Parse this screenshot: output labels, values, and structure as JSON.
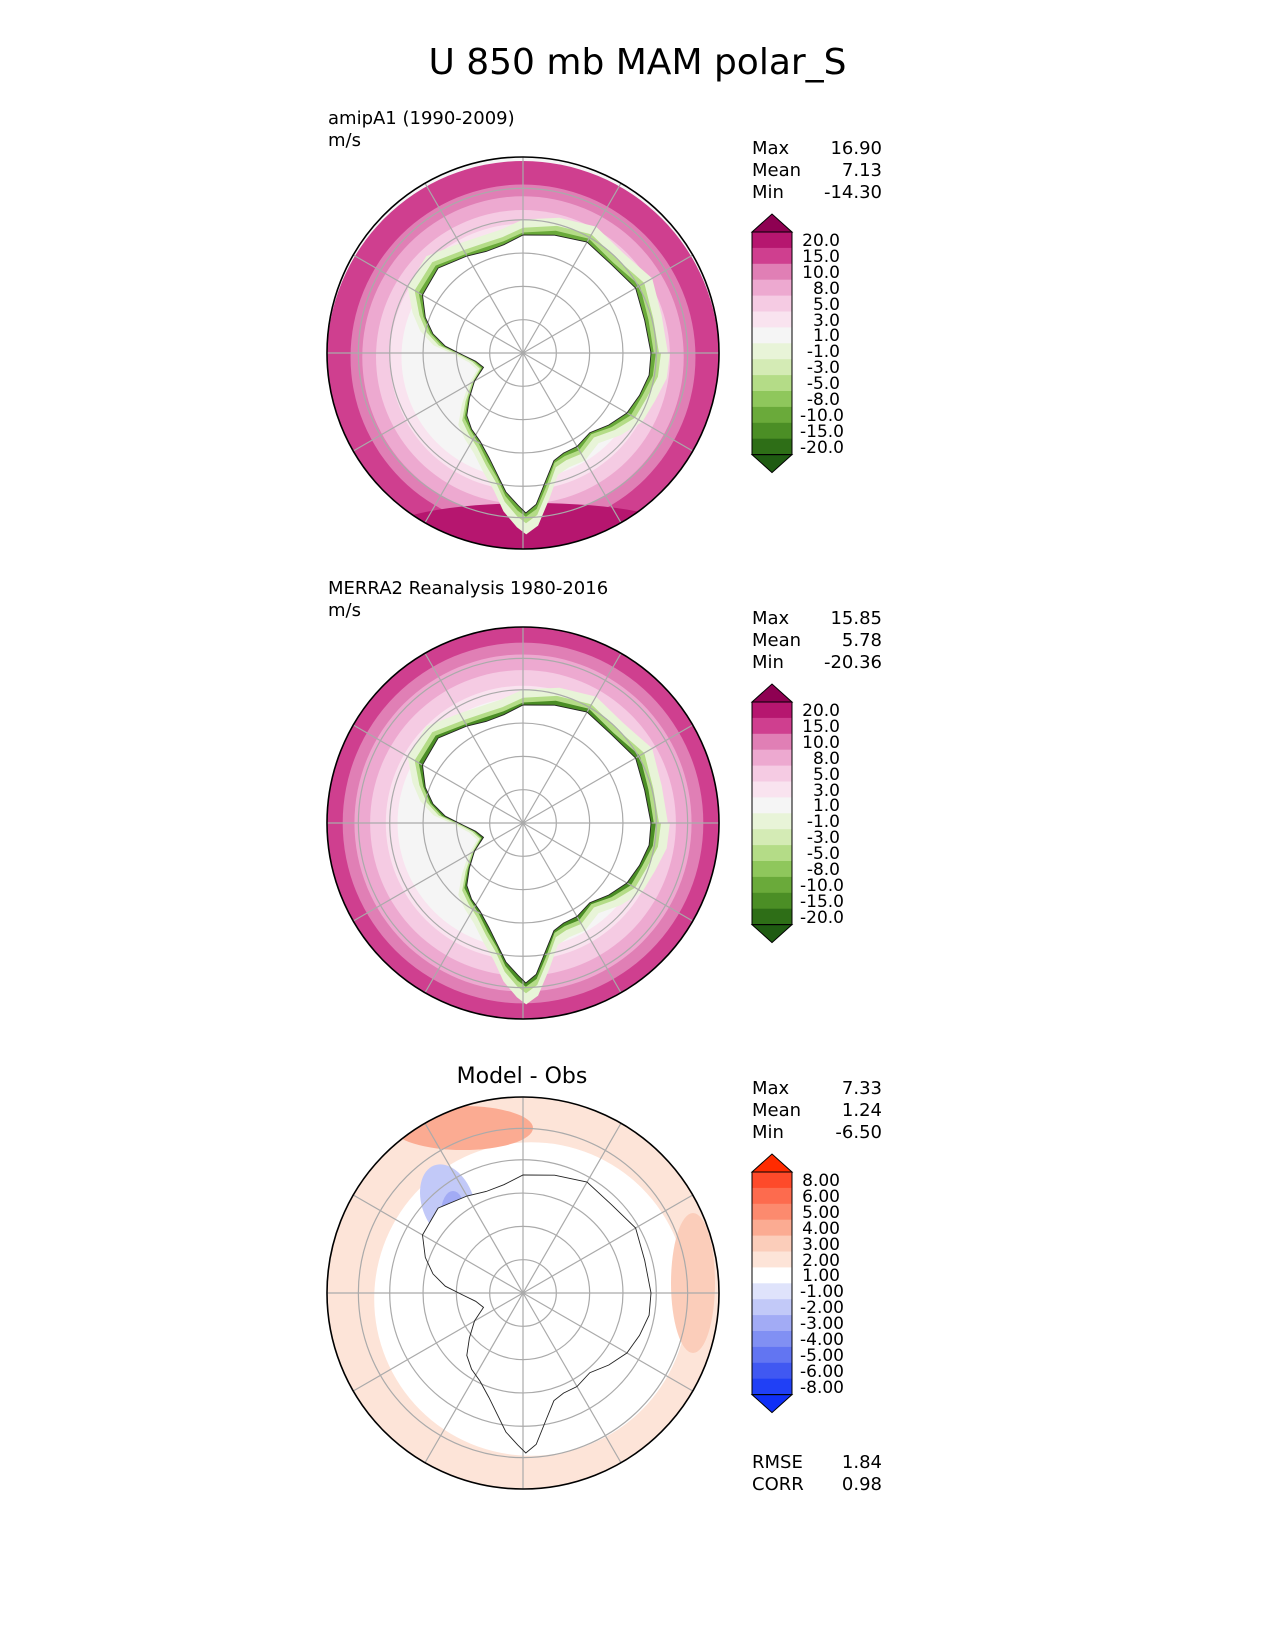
{
  "title": "U 850 mb MAM polar_S",
  "panels": [
    {
      "id": "test",
      "name": "amipA1 (1990-2009)",
      "units": "m/s",
      "stats": {
        "max_label": "Max",
        "max": "16.90",
        "mean_label": "Mean",
        "mean": "7.13",
        "min_label": "Min",
        "min": "-14.30"
      },
      "colorbar": {
        "labels": [
          "20.0",
          "15.0",
          "10.0",
          "8.0",
          "5.0",
          "3.0",
          "1.0",
          "-1.0",
          "-3.0",
          "-5.0",
          "-8.0",
          "-10.0",
          "-15.0",
          "-20.0"
        ],
        "colors": [
          "#8e0152",
          "#b6166f",
          "#cf3f8f",
          "#e07fb5",
          "#eda9d0",
          "#f5cbe3",
          "#f9e3ef",
          "#f5f5f5",
          "#e8f4d8",
          "#d4ebb5",
          "#b4dc87",
          "#8fc75c",
          "#6aaa3a",
          "#4b8e25",
          "#2e6e17",
          "#1f5b12"
        ]
      }
    },
    {
      "id": "ref",
      "name": "MERRA2 Reanalysis 1980-2016",
      "units": "m/s",
      "stats": {
        "max_label": "Max",
        "max": "15.85",
        "mean_label": "Mean",
        "mean": "5.78",
        "min_label": "Min",
        "min": "-20.36"
      },
      "colorbar": {
        "labels": [
          "20.0",
          "15.0",
          "10.0",
          "8.0",
          "5.0",
          "3.0",
          "1.0",
          "-1.0",
          "-3.0",
          "-5.0",
          "-8.0",
          "-10.0",
          "-15.0",
          "-20.0"
        ],
        "colors": [
          "#8e0152",
          "#b6166f",
          "#cf3f8f",
          "#e07fb5",
          "#eda9d0",
          "#f5cbe3",
          "#f9e3ef",
          "#f5f5f5",
          "#e8f4d8",
          "#d4ebb5",
          "#b4dc87",
          "#8fc75c",
          "#6aaa3a",
          "#4b8e25",
          "#2e6e17",
          "#1f5b12"
        ]
      }
    },
    {
      "id": "diff",
      "name": "Model - Obs",
      "stats": {
        "max_label": "Max",
        "max": "7.33",
        "mean_label": "Mean",
        "mean": "1.24",
        "min_label": "Min",
        "min": "-6.50"
      },
      "metrics": {
        "rmse_label": "RMSE",
        "rmse": "1.84",
        "corr_label": "CORR",
        "corr": "0.98"
      },
      "colorbar": {
        "labels": [
          "8.00",
          "6.00",
          "5.00",
          "4.00",
          "3.00",
          "2.00",
          "1.00",
          "-1.00",
          "-2.00",
          "-3.00",
          "-4.00",
          "-5.00",
          "-6.00",
          "-8.00"
        ],
        "colors": [
          "#ff2b00",
          "#fe4a2a",
          "#fd6b4e",
          "#fc8a6e",
          "#fbab92",
          "#fbcdba",
          "#fde4d8",
          "#ffffff",
          "#dfe3fb",
          "#c2c9f8",
          "#a2abf5",
          "#8190f3",
          "#6275f2",
          "#4058f2",
          "#2040f6",
          "#0f2ff7"
        ]
      }
    }
  ],
  "chart_data": [
    {
      "type": "heatmap",
      "title": "amipA1 (1990-2009)",
      "units": "m/s",
      "projection": "polar stereographic, South Pole",
      "color_levels": [
        -20,
        -15,
        -10,
        -8,
        -5,
        -3,
        -1,
        1,
        3,
        5,
        8,
        10,
        15,
        20
      ],
      "stats": {
        "max": 16.9,
        "mean": 7.13,
        "min": -14.3
      },
      "features": [
        "strong westerlies (10-20 m/s) over Southern Ocean ring",
        "weak easterlies (-1 to -10 m/s) along Antarctic coast"
      ]
    },
    {
      "type": "heatmap",
      "title": "MERRA2 Reanalysis 1980-2016",
      "units": "m/s",
      "projection": "polar stereographic, South Pole",
      "color_levels": [
        -20,
        -15,
        -10,
        -8,
        -5,
        -3,
        -1,
        1,
        3,
        5,
        8,
        10,
        15,
        20
      ],
      "stats": {
        "max": 15.85,
        "mean": 5.78,
        "min": -20.36
      },
      "features": [
        "westerlies (8-15 m/s) over Southern Ocean ring",
        "easterlies (-5 to -20 m/s) along Antarctic coast"
      ]
    },
    {
      "type": "heatmap",
      "title": "Model - Obs",
      "projection": "polar stereographic, South Pole",
      "color_levels": [
        -8,
        -6,
        -5,
        -4,
        -3,
        -2,
        -1,
        1,
        2,
        3,
        4,
        5,
        6,
        8
      ],
      "stats": {
        "max": 7.33,
        "mean": 1.24,
        "min": -6.5
      },
      "metrics": {
        "rmse": 1.84,
        "corr": 0.98
      },
      "features": [
        "positive bias (1-5) in outer ring",
        "small negative bias (-1 to -3) near Antarctic Peninsula"
      ]
    }
  ]
}
